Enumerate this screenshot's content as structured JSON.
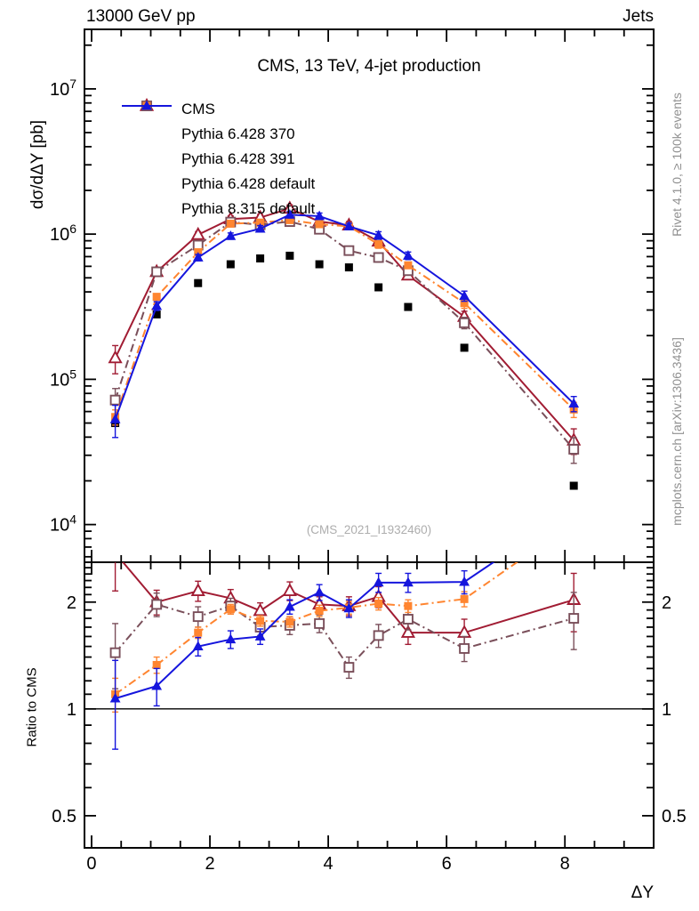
{
  "header": {
    "left": "13000 GeV pp",
    "right": "Jets"
  },
  "side_texts": {
    "rivet": "Rivet 4.1.0, ≥ 100k events",
    "mcplots": "mcplots.cern.ch [arXiv:1306.3436]"
  },
  "watermark": "(CMS_2021_I1932460)",
  "chart_data": {
    "type": "line",
    "title": "CMS, 13 TeV, 4-jet production",
    "xlabel": "ΔY",
    "ylabel_main": "dσ/dΔY [pb]",
    "ylabel_ratio": "Ratio to CMS",
    "legend_position": "top-left-inside",
    "grid": false,
    "xlim": [
      -0.12,
      9.5
    ],
    "ylim_main": [
      5500,
      25700000
    ],
    "ylim_ratio": [
      0.406,
      2.59
    ],
    "x_minor_step": 0.5,
    "x_ticks": [
      {
        "label": "0",
        "v": 0
      },
      {
        "label": "2",
        "v": 2
      },
      {
        "label": "4",
        "v": 4
      },
      {
        "label": "6",
        "v": 6
      },
      {
        "label": "8",
        "v": 8
      }
    ],
    "y_ticks_main": [
      {
        "exp": "7",
        "v": 10000000
      },
      {
        "exp": "6",
        "v": 1000000
      },
      {
        "exp": "5",
        "v": 100000
      },
      {
        "exp": "4",
        "v": 10000
      }
    ],
    "y_ticks_ratio": [
      {
        "label": "2",
        "v": 2
      },
      {
        "label": "1",
        "v": 1
      },
      {
        "label": "0.5",
        "v": 0.5
      }
    ],
    "ratio_reference": 1,
    "x": [
      0.4,
      1.1,
      1.8,
      2.35,
      2.85,
      3.35,
      3.85,
      4.35,
      4.85,
      5.35,
      6.3,
      8.15
    ],
    "series": [
      {
        "name": "CMS",
        "color": "#000000",
        "marker": "square-filled",
        "line": "none",
        "values": [
          50000,
          280000,
          460000,
          620000,
          680000,
          710000,
          620000,
          590000,
          430000,
          315000,
          165000,
          18500
        ],
        "err_frac": [
          0,
          0,
          0,
          0,
          0,
          0,
          0,
          0,
          0,
          0,
          0,
          0
        ],
        "ratio": null
      },
      {
        "name": "Pythia 6.428 370",
        "color": "#a11c33",
        "marker": "triangle-open",
        "line": "solid",
        "values": [
          140000,
          550000,
          990000,
          1270000,
          1300000,
          1500000,
          1220000,
          1150000,
          890000,
          520000,
          270000,
          38000
        ],
        "err_frac": [
          0.22,
          0.06,
          0.05,
          0.05,
          0.05,
          0.06,
          0.05,
          0.06,
          0.07,
          0.06,
          0.09,
          0.2
        ],
        "ratio": [
          2.75,
          2.0,
          2.15,
          2.05,
          1.89,
          2.15,
          1.97,
          1.95,
          2.07,
          1.64,
          1.64,
          2.03
        ],
        "ratio_err": [
          0.6,
          0.16,
          0.14,
          0.12,
          0.1,
          0.13,
          0.1,
          0.12,
          0.14,
          0.12,
          0.15,
          0.38
        ]
      },
      {
        "name": "Pythia 6.428 391",
        "color": "#7a4f5a",
        "marker": "square-open",
        "line": "dashdot",
        "values": [
          72000,
          550000,
          840000,
          1210000,
          1160000,
          1220000,
          1080000,
          770000,
          690000,
          560000,
          245000,
          33000
        ],
        "err_frac": [
          0.2,
          0.06,
          0.05,
          0.05,
          0.05,
          0.05,
          0.05,
          0.06,
          0.07,
          0.06,
          0.09,
          0.2
        ],
        "ratio": [
          1.44,
          1.97,
          1.82,
          1.95,
          1.7,
          1.72,
          1.74,
          1.31,
          1.61,
          1.79,
          1.48,
          1.8
        ],
        "ratio_err": [
          0.3,
          0.15,
          0.12,
          0.1,
          0.09,
          0.1,
          0.1,
          0.09,
          0.12,
          0.12,
          0.12,
          0.33
        ]
      },
      {
        "name": "Pythia 6.428 default",
        "color": "#ff8530",
        "marker": "square-filled",
        "line": "dashdot",
        "values": [
          55000,
          370000,
          750000,
          1180000,
          1200000,
          1250000,
          1170000,
          1130000,
          850000,
          610000,
          335000,
          62000
        ],
        "err_frac": [
          0.12,
          0.05,
          0.05,
          0.04,
          0.04,
          0.05,
          0.04,
          0.05,
          0.06,
          0.05,
          0.08,
          0.12
        ],
        "ratio": [
          1.1,
          1.33,
          1.64,
          1.91,
          1.77,
          1.76,
          1.89,
          1.93,
          1.98,
          1.95,
          2.04,
          3.35
        ],
        "ratio_err": [
          0.12,
          0.07,
          0.06,
          0.06,
          0.06,
          0.06,
          0.07,
          0.08,
          0.08,
          0.08,
          0.1,
          0.3
        ]
      },
      {
        "name": "Pythia 8.315 default",
        "color": "#1515dd",
        "marker": "triangle-filled",
        "line": "solid",
        "values": [
          53000,
          320000,
          690000,
          970000,
          1090000,
          1360000,
          1330000,
          1130000,
          980000,
          710000,
          375000,
          68000
        ],
        "err_frac": [
          0.25,
          0.07,
          0.05,
          0.05,
          0.05,
          0.05,
          0.05,
          0.05,
          0.06,
          0.06,
          0.08,
          0.12
        ],
        "ratio": [
          1.07,
          1.16,
          1.5,
          1.57,
          1.6,
          1.94,
          2.13,
          1.92,
          2.27,
          2.27,
          2.28,
          3.68
        ],
        "ratio_err": [
          0.3,
          0.14,
          0.09,
          0.09,
          0.08,
          0.09,
          0.11,
          0.11,
          0.14,
          0.14,
          0.17,
          0.3
        ]
      }
    ]
  }
}
